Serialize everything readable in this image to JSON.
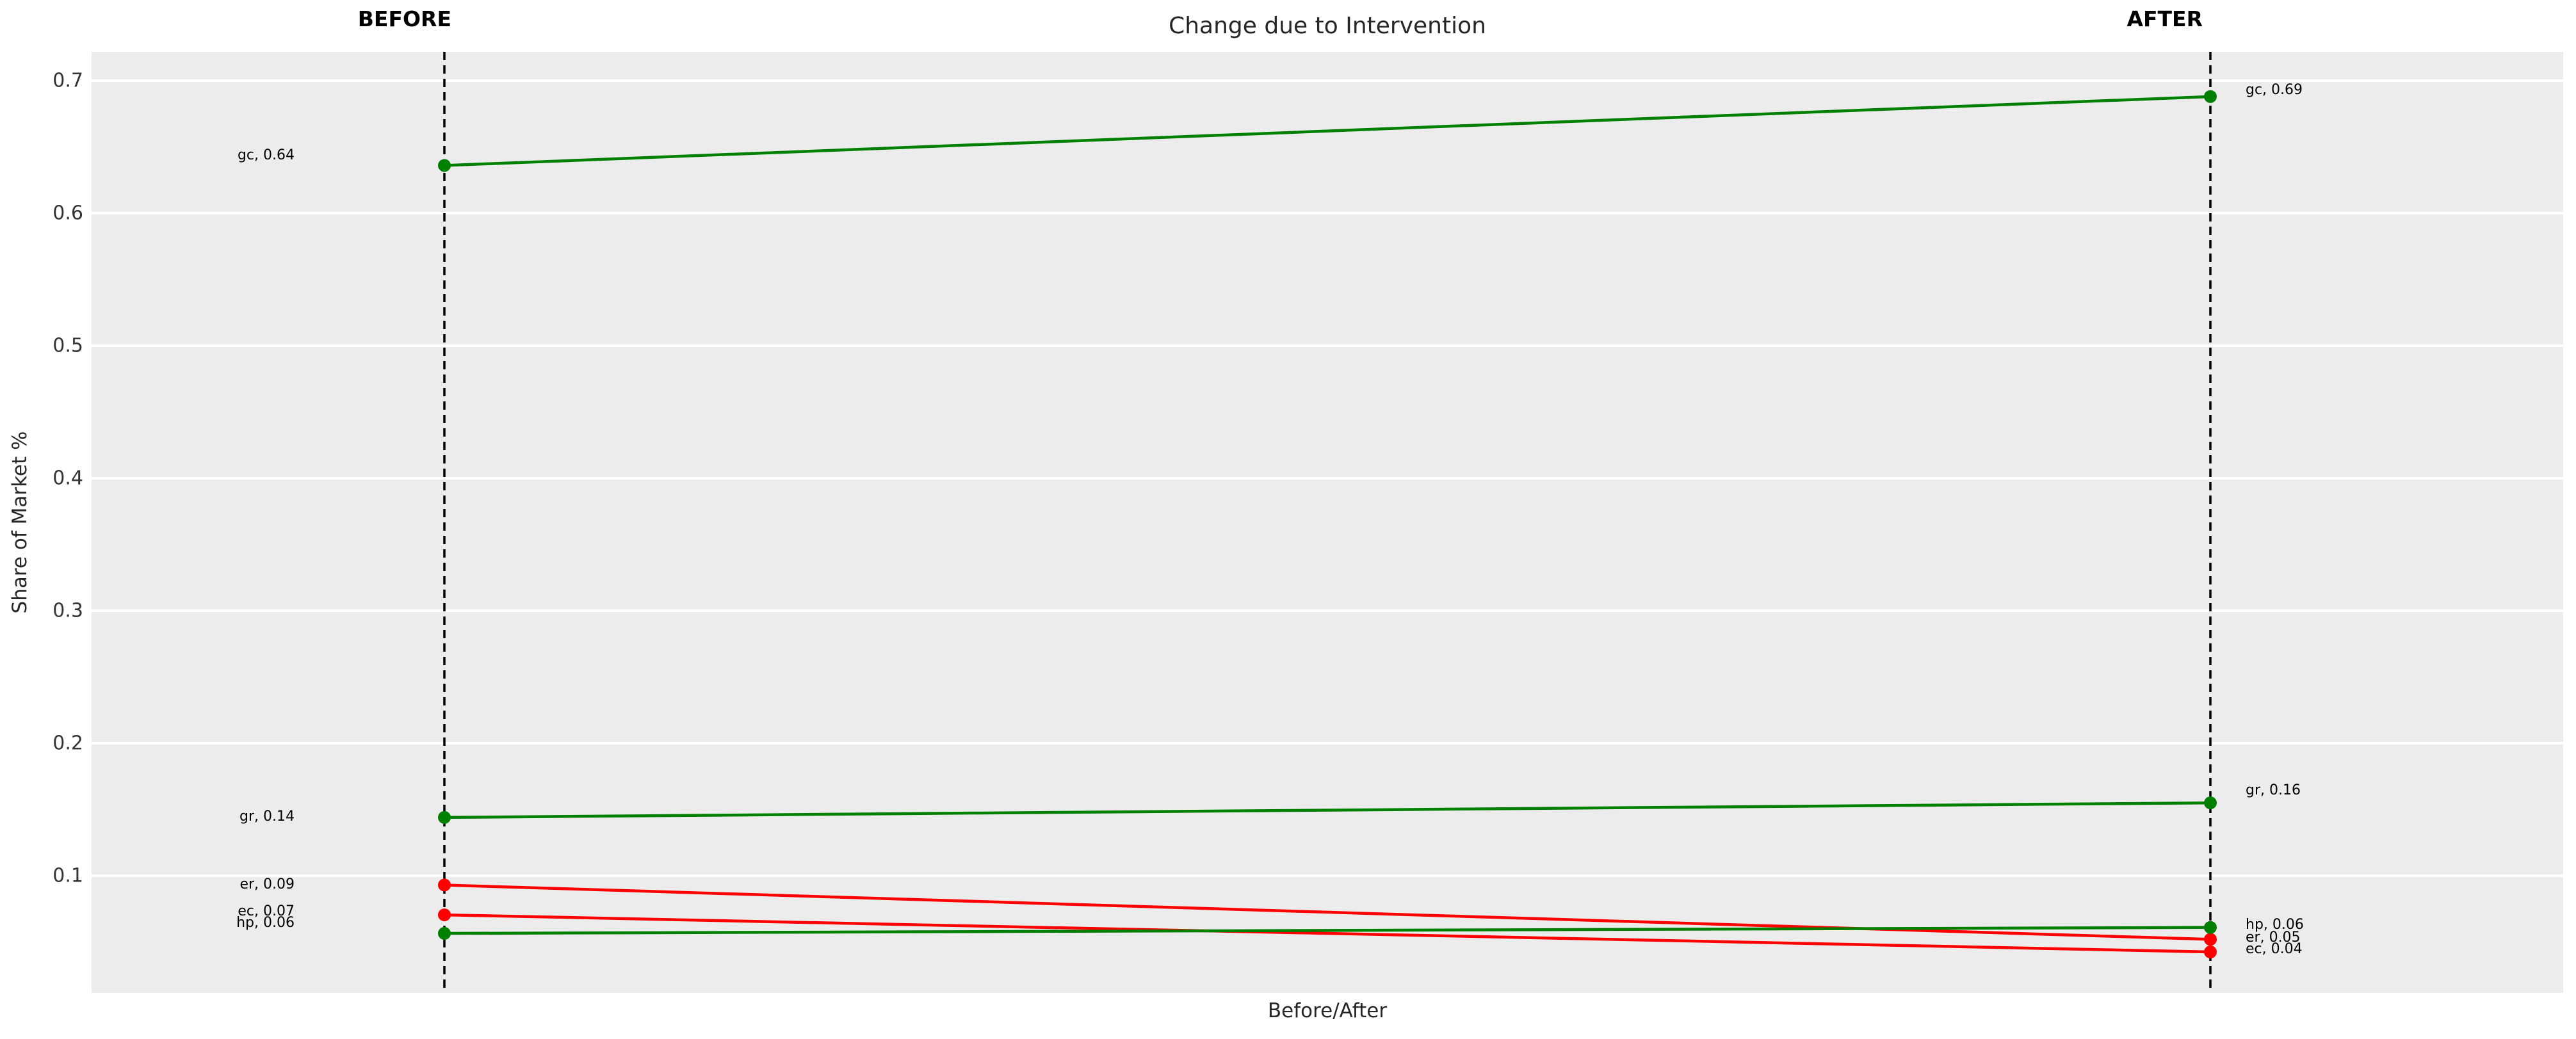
{
  "header": {
    "title": "Change due to Intervention",
    "before_label": "BEFORE",
    "after_label": "AFTER"
  },
  "axes": {
    "xlabel": "Before/After",
    "ylabel": "Share of Market %"
  },
  "chart_data": {
    "type": "line",
    "subtype": "slope-chart",
    "title": "Change due to Intervention",
    "xlabel": "Before/After",
    "ylabel": "Share of Market %",
    "categories": [
      "BEFORE",
      "AFTER"
    ],
    "ylim": [
      0.012,
      0.722
    ],
    "yticks": [
      0.7,
      0.6,
      0.5,
      0.4,
      0.3,
      0.2,
      0.1
    ],
    "ytick_labels": [
      "0.7",
      "0.6",
      "0.5",
      "0.4",
      "0.3",
      "0.2",
      "0.1"
    ],
    "grid": true,
    "legend": "none",
    "plot_background": "#ececec",
    "grid_color": "#ffffff",
    "guide_line_color": "#000000",
    "increase_color": "#008000",
    "decrease_color": "#ff0000",
    "series": [
      {
        "id": "gc",
        "color": "#008000",
        "trend": "up",
        "before": 0.636,
        "after": 0.688,
        "label_before": "gc, 0.64",
        "label_after": "gc, 0.69"
      },
      {
        "id": "gr",
        "color": "#008000",
        "trend": "up",
        "before": 0.144,
        "after": 0.155,
        "label_before": "gr, 0.14",
        "label_after": "gr, 0.16"
      },
      {
        "id": "er",
        "color": "#ff0000",
        "trend": "down",
        "before": 0.093,
        "after": 0.052,
        "label_before": "er, 0.09",
        "label_after": "er, 0.05"
      },
      {
        "id": "ec",
        "color": "#ff0000",
        "trend": "down",
        "before": 0.0705,
        "after": 0.0425,
        "label_before": "ec, 0.07",
        "label_after": "ec, 0.04"
      },
      {
        "id": "hp",
        "color": "#008000",
        "trend": "up",
        "before": 0.0565,
        "after": 0.061,
        "label_before": "hp, 0.06",
        "label_after": "hp, 0.06"
      }
    ]
  }
}
